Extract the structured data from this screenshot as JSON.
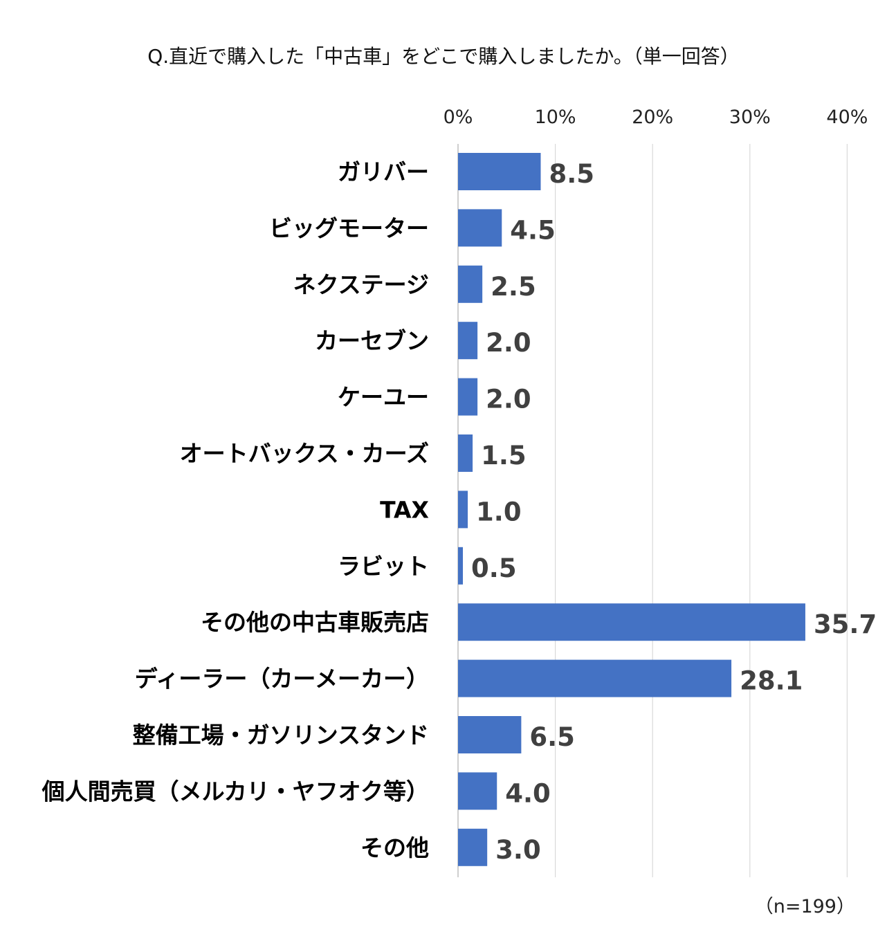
{
  "chart_data": {
    "type": "bar",
    "orientation": "horizontal",
    "title": "Q.直近で購入した「中古車」をどこで購入しましたか。（単一回答）",
    "categories": [
      "ガリバー",
      "ビッグモーター",
      "ネクステージ",
      "カーセブン",
      "ケーユー",
      "オートバックス・カーズ",
      "TAX",
      "ラビット",
      "その他の中古車販売店",
      "ディーラー（カーメーカー）",
      "整備工場・ガソリンスタンド",
      "個人間売買（メルカリ・ヤフオク等）",
      "その他"
    ],
    "values": [
      8.5,
      4.5,
      2.5,
      2.0,
      2.0,
      1.5,
      1.0,
      0.5,
      35.7,
      28.1,
      6.5,
      4.0,
      3.0
    ],
    "value_labels": [
      "8.5",
      "4.5",
      "2.5",
      "2.0",
      "2.0",
      "1.5",
      "1.0",
      "0.5",
      "35.7",
      "28.1",
      "6.5",
      "4.0",
      "3.0"
    ],
    "x_ticks": [
      "0%",
      "10%",
      "20%",
      "30%",
      "40%"
    ],
    "xlim": [
      0,
      40
    ],
    "x_axis_position": "top",
    "grid": true,
    "legend": "none",
    "note": "（n=199）",
    "colors": {
      "bar": "#4472C4",
      "grid": "#D9D9D9",
      "value_label": "#404040"
    }
  }
}
